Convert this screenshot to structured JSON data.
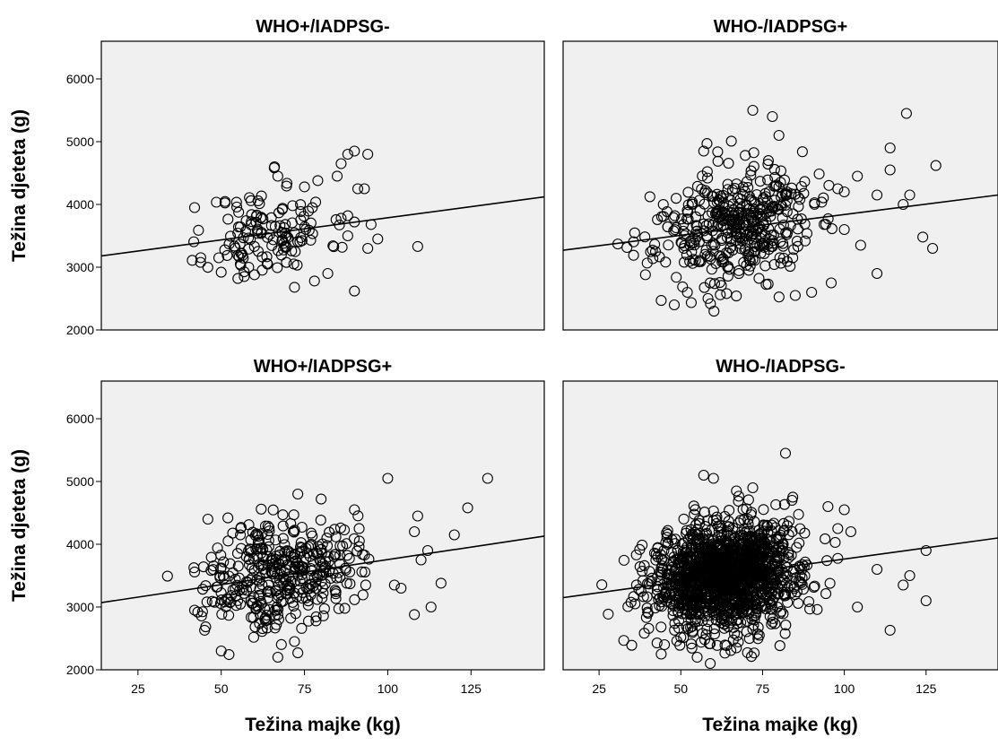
{
  "figure": {
    "xlabel": "Težina majke (kg)",
    "ylabel": "Težina djeteta (g)"
  },
  "chart_data": [
    {
      "type": "scatter",
      "title": "WHO+/IADPSG-",
      "xlabel": "",
      "ylabel": "Težina djeteta (g)",
      "xlim": [
        14,
        147
      ],
      "ylim": [
        2000,
        6600
      ],
      "xticks": [],
      "yticks": [
        2000,
        3000,
        4000,
        5000,
        6000
      ],
      "fit_line": {
        "x": [
          14,
          147
        ],
        "y": [
          3180,
          4120
        ]
      },
      "cluster": {
        "n": 130,
        "mx": 64,
        "sx": 9,
        "my": 3550,
        "sy": 380,
        "seed": 11
      },
      "points": [
        [
          42,
          3950
        ],
        [
          66,
          4600
        ],
        [
          67,
          4450
        ],
        [
          75,
          4280
        ],
        [
          79,
          4380
        ],
        [
          86,
          4650
        ],
        [
          88,
          4800
        ],
        [
          90,
          4850
        ],
        [
          94,
          4800
        ],
        [
          91,
          4250
        ],
        [
          93,
          4250
        ],
        [
          86,
          3780
        ],
        [
          88,
          3820
        ],
        [
          90,
          3720
        ],
        [
          95,
          3680
        ],
        [
          97,
          3450
        ],
        [
          94,
          3300
        ],
        [
          109,
          3330
        ],
        [
          90,
          2620
        ],
        [
          72,
          2680
        ],
        [
          78,
          2780
        ],
        [
          82,
          2900
        ],
        [
          88,
          3500
        ],
        [
          55,
          2820
        ],
        [
          50,
          2920
        ],
        [
          60,
          2880
        ]
      ]
    },
    {
      "type": "scatter",
      "title": "WHO-/IADPSG+",
      "xlabel": "",
      "ylabel": "",
      "xlim": [
        14,
        147
      ],
      "ylim": [
        2000,
        6600
      ],
      "xticks": [],
      "yticks": [
        2000,
        3000,
        4000,
        5000,
        6000
      ],
      "fit_line": {
        "x": [
          14,
          147
        ],
        "y": [
          3270,
          4150
        ]
      },
      "cluster": {
        "n": 420,
        "mx": 66,
        "sx": 12,
        "my": 3650,
        "sy": 450,
        "seed": 23
      },
      "points": [
        [
          72,
          5500
        ],
        [
          78,
          5400
        ],
        [
          80,
          5100
        ],
        [
          119,
          5450
        ],
        [
          114,
          4900
        ],
        [
          58,
          4970
        ],
        [
          57,
          4850
        ],
        [
          128,
          4620
        ],
        [
          104,
          4450
        ],
        [
          114,
          4550
        ],
        [
          110,
          4150
        ],
        [
          120,
          4150
        ],
        [
          118,
          4000
        ],
        [
          124,
          3480
        ],
        [
          127,
          3300
        ],
        [
          110,
          2900
        ],
        [
          105,
          3350
        ],
        [
          100,
          3600
        ],
        [
          44,
          2470
        ],
        [
          48,
          2400
        ],
        [
          52,
          2600
        ],
        [
          64,
          2580
        ],
        [
          85,
          2550
        ],
        [
          90,
          2600
        ],
        [
          96,
          2750
        ],
        [
          98,
          4250
        ],
        [
          100,
          4200
        ]
      ]
    },
    {
      "type": "scatter",
      "title": "WHO+/IADPSG+",
      "xlabel": "Težina majke (kg)",
      "ylabel": "Težina djeteta (g)",
      "xlim": [
        14,
        147
      ],
      "ylim": [
        2000,
        6600
      ],
      "xticks": [
        25,
        50,
        75,
        100,
        125
      ],
      "yticks": [
        2000,
        3000,
        4000,
        5000,
        6000
      ],
      "fit_line": {
        "x": [
          14,
          147
        ],
        "y": [
          3070,
          4130
        ]
      },
      "cluster": {
        "n": 380,
        "mx": 68,
        "sx": 11,
        "my": 3560,
        "sy": 420,
        "seed": 37
      },
      "points": [
        [
          100,
          5050
        ],
        [
          130,
          5050
        ],
        [
          73,
          4800
        ],
        [
          80,
          4720
        ],
        [
          124,
          4580
        ],
        [
          109,
          4450
        ],
        [
          120,
          4150
        ],
        [
          108,
          4200
        ],
        [
          110,
          3750
        ],
        [
          112,
          3900
        ],
        [
          116,
          3380
        ],
        [
          108,
          2880
        ],
        [
          113,
          3000
        ],
        [
          90,
          4550
        ],
        [
          46,
          4400
        ],
        [
          52,
          4420
        ],
        [
          62,
          4560
        ],
        [
          42,
          2950
        ],
        [
          45,
          2630
        ],
        [
          50,
          2300
        ],
        [
          67,
          2200
        ],
        [
          73,
          2270
        ],
        [
          72,
          2450
        ],
        [
          102,
          3350
        ],
        [
          104,
          3300
        ]
      ]
    },
    {
      "type": "scatter",
      "title": "WHO-/IADPSG-",
      "xlabel": "Težina majke (kg)",
      "ylabel": "",
      "xlim": [
        14,
        147
      ],
      "ylim": [
        2000,
        6600
      ],
      "xticks": [
        25,
        50,
        75,
        100,
        125
      ],
      "yticks": [
        2000,
        3000,
        4000,
        5000,
        6000
      ],
      "fit_line": {
        "x": [
          14,
          147
        ],
        "y": [
          3150,
          4100
        ]
      },
      "cluster": {
        "n": 1500,
        "mx": 64,
        "sx": 11,
        "my": 3500,
        "sy": 430,
        "seed": 53
      },
      "points": [
        [
          82,
          5450
        ],
        [
          57,
          5100
        ],
        [
          60,
          5050
        ],
        [
          72,
          4900
        ],
        [
          67,
          4850
        ],
        [
          84,
          4700
        ],
        [
          95,
          4600
        ],
        [
          100,
          4550
        ],
        [
          125,
          3900
        ],
        [
          125,
          3100
        ],
        [
          114,
          2630
        ],
        [
          120,
          3500
        ],
        [
          118,
          3350
        ],
        [
          110,
          3600
        ],
        [
          104,
          3000
        ],
        [
          36,
          3050
        ],
        [
          40,
          2900
        ],
        [
          44,
          2250
        ],
        [
          55,
          2200
        ],
        [
          59,
          2100
        ],
        [
          67,
          2350
        ],
        [
          74,
          2550
        ],
        [
          98,
          4250
        ],
        [
          102,
          4200
        ],
        [
          46,
          4000
        ],
        [
          45,
          2400
        ]
      ]
    }
  ]
}
